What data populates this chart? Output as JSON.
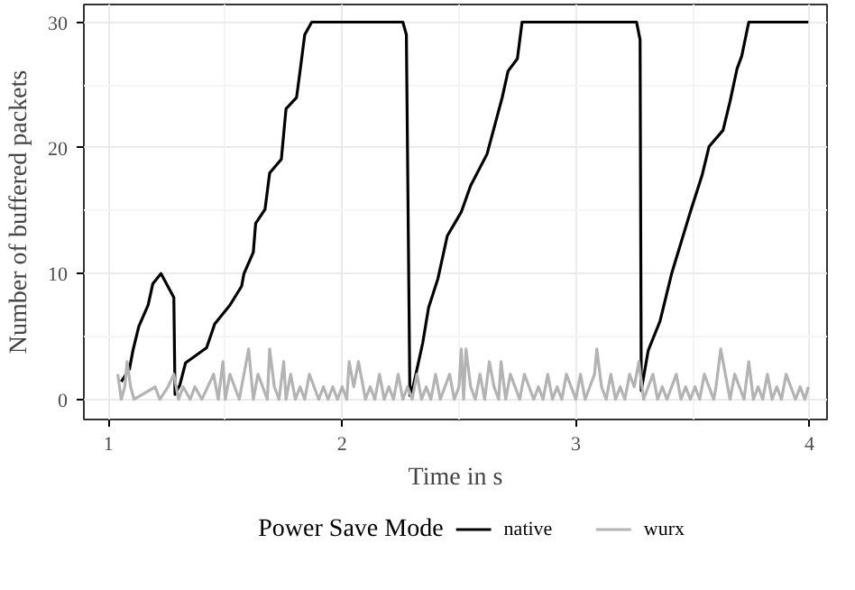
{
  "chart_data": {
    "type": "line",
    "xlabel": "Time in s",
    "ylabel": "Number of buffered packets",
    "legend_title": "Power Save Mode",
    "legend": "bottom",
    "grid": true,
    "xlim": [
      0.895,
      4.075
    ],
    "ylim": [
      -1.6,
      31.4
    ],
    "xticks": [
      1,
      2,
      3,
      4
    ],
    "yticks": [
      0,
      10,
      20,
      30
    ],
    "series": [
      {
        "name": "native",
        "color": "#000000",
        "x": [
          1.055,
          1.09,
          1.105,
          1.13,
          1.17,
          1.19,
          1.225,
          1.28,
          1.285,
          1.305,
          1.33,
          1.42,
          1.455,
          1.52,
          1.57,
          1.58,
          1.62,
          1.63,
          1.67,
          1.69,
          1.74,
          1.76,
          1.805,
          1.82,
          1.84,
          1.87,
          2.26,
          2.275,
          2.29,
          2.305,
          2.345,
          2.37,
          2.41,
          2.45,
          2.51,
          2.55,
          2.62,
          2.685,
          2.71,
          2.75,
          2.77,
          3.26,
          3.275,
          3.28,
          3.31,
          3.36,
          3.41,
          3.49,
          3.54,
          3.57,
          3.63,
          3.66,
          3.69,
          3.71,
          3.74,
          3.995
        ],
        "values": [
          1.4,
          2.4,
          3.9,
          5.8,
          7.5,
          9.2,
          10,
          8.1,
          0.4,
          1.1,
          2.9,
          4.1,
          6,
          7.5,
          9,
          10,
          11.7,
          14,
          15.1,
          18,
          19.1,
          23.1,
          24,
          26.1,
          29,
          30,
          30,
          29,
          0.3,
          1.1,
          4.5,
          7.3,
          9.6,
          13,
          14.9,
          17,
          19.5,
          24,
          26.1,
          27.1,
          30,
          30,
          28.6,
          0.7,
          3.9,
          6.2,
          10,
          14.9,
          17.8,
          20.1,
          21.4,
          23.7,
          26.3,
          27.3,
          30,
          30
        ]
      },
      {
        "name": "wurx",
        "color": "#b3b3b3",
        "x": [
          1.04,
          1.055,
          1.07,
          1.08,
          1.095,
          1.11,
          1.2,
          1.22,
          1.255,
          1.28,
          1.3,
          1.32,
          1.35,
          1.37,
          1.4,
          1.45,
          1.47,
          1.49,
          1.5,
          1.52,
          1.54,
          1.56,
          1.58,
          1.6,
          1.62,
          1.64,
          1.66,
          1.68,
          1.69,
          1.71,
          1.73,
          1.75,
          1.76,
          1.78,
          1.8,
          1.82,
          1.84,
          1.86,
          1.88,
          1.9,
          1.92,
          1.94,
          1.96,
          1.98,
          2.0,
          2.02,
          2.03,
          2.05,
          2.07,
          2.08,
          2.1,
          2.12,
          2.14,
          2.16,
          2.18,
          2.2,
          2.22,
          2.24,
          2.26,
          2.28,
          2.3,
          2.32,
          2.34,
          2.36,
          2.38,
          2.4,
          2.42,
          2.44,
          2.46,
          2.48,
          2.5,
          2.51,
          2.52,
          2.53,
          2.55,
          2.57,
          2.59,
          2.61,
          2.63,
          2.65,
          2.67,
          2.68,
          2.7,
          2.72,
          2.74,
          2.76,
          2.78,
          2.8,
          2.82,
          2.84,
          2.86,
          2.88,
          2.9,
          2.92,
          2.94,
          2.96,
          2.98,
          3.0,
          3.02,
          3.04,
          3.06,
          3.08,
          3.09,
          3.11,
          3.13,
          3.15,
          3.17,
          3.19,
          3.21,
          3.23,
          3.25,
          3.27,
          3.29,
          3.31,
          3.33,
          3.35,
          3.37,
          3.39,
          3.41,
          3.43,
          3.45,
          3.47,
          3.49,
          3.51,
          3.53,
          3.55,
          3.57,
          3.59,
          3.6,
          3.62,
          3.64,
          3.66,
          3.68,
          3.7,
          3.72,
          3.74,
          3.76,
          3.78,
          3.8,
          3.82,
          3.84,
          3.86,
          3.88,
          3.9,
          3.92,
          3.94,
          3.96,
          3.98,
          3.995
        ],
        "values": [
          2,
          0,
          1,
          3,
          1,
          0,
          1,
          0,
          1,
          2,
          0,
          1,
          0,
          1,
          0,
          2,
          0,
          3,
          0,
          2,
          1,
          0,
          2,
          4,
          0,
          2,
          1,
          0,
          4,
          1,
          0,
          3,
          0,
          2,
          0,
          1,
          0,
          2,
          1,
          0,
          1,
          0,
          1,
          0,
          1,
          0,
          3,
          1,
          3,
          2,
          0,
          1,
          0,
          2,
          0,
          1,
          0,
          2,
          0,
          1,
          0,
          2,
          0,
          1,
          0,
          2,
          0,
          1,
          2,
          0,
          1,
          4,
          0,
          4,
          1,
          0,
          2,
          0,
          3,
          1,
          0,
          3,
          0,
          2,
          1,
          0,
          2,
          1,
          0,
          1,
          0,
          2,
          0,
          1,
          0,
          2,
          1,
          0,
          2,
          0,
          1,
          2,
          4,
          1,
          0,
          2,
          0,
          1,
          0,
          2,
          1,
          3,
          0,
          1,
          2,
          0,
          1,
          0,
          1,
          2,
          0,
          1,
          0,
          1,
          0,
          2,
          1,
          0,
          1,
          4,
          2,
          0,
          2,
          1,
          0,
          3,
          0,
          1,
          0,
          2,
          0,
          1,
          0,
          2,
          1,
          0,
          1,
          0,
          1
        ]
      }
    ]
  }
}
